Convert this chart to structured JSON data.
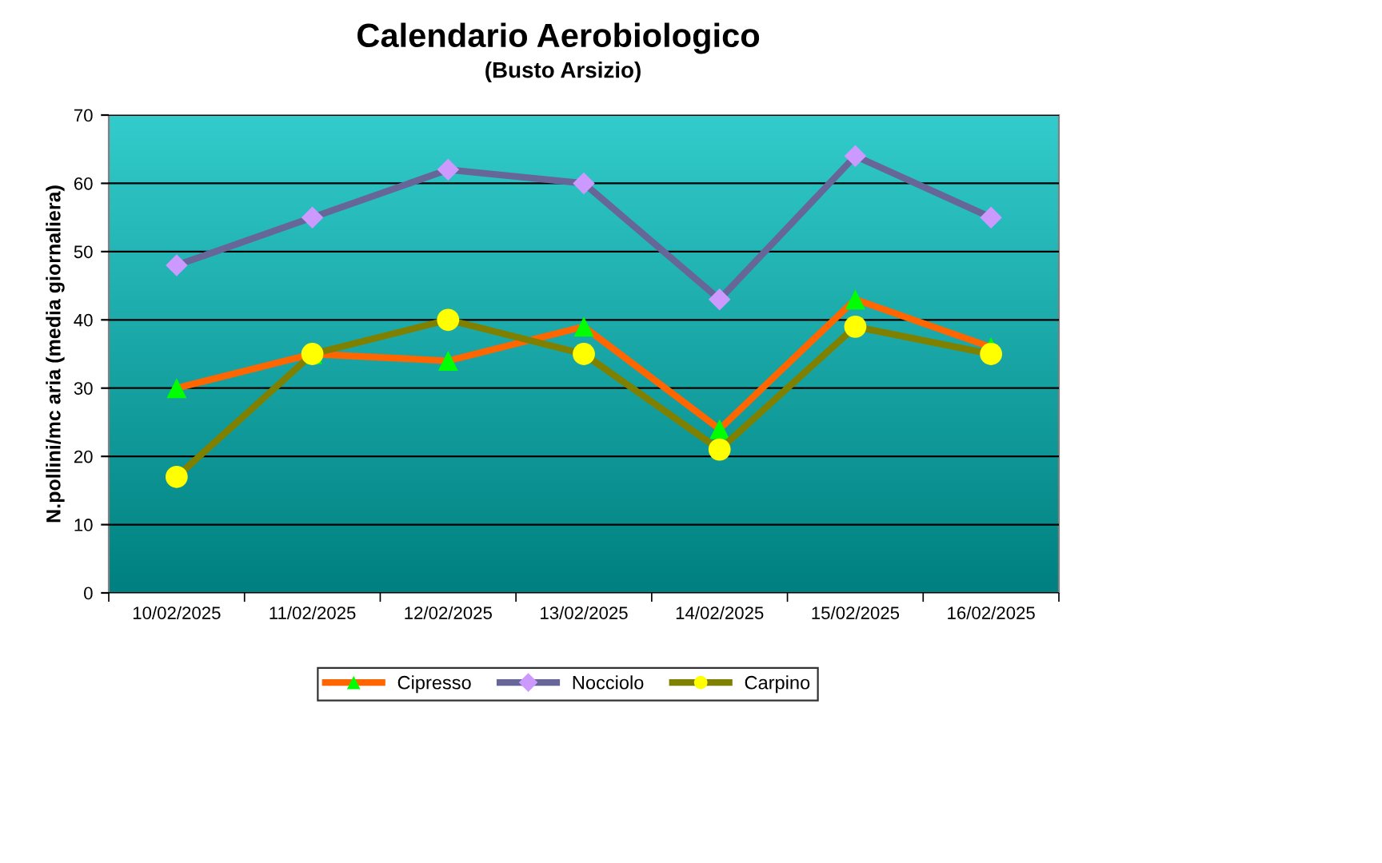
{
  "chart_data": {
    "type": "line",
    "title": "Calendario Aerobiologico",
    "subtitle": "(Busto Arsizio)",
    "ylabel": "N.pollini/mc aria (media giornaliera)",
    "categories": [
      "10/02/2025",
      "11/02/2025",
      "12/02/2025",
      "13/02/2025",
      "14/02/2025",
      "15/02/2025",
      "16/02/2025"
    ],
    "series": [
      {
        "name": "Cipresso",
        "color": "#ff6600",
        "marker": "triangle",
        "colors": [
          "#00ff00",
          "#00ff00",
          "#00ff00",
          "#00ff00",
          "#00ff00",
          "#00ff00",
          "#00ff00"
        ],
        "values": [
          30,
          35,
          34,
          39,
          24,
          43,
          36
        ]
      },
      {
        "name": "Nocciolo",
        "color": "#666699",
        "marker": "diamond",
        "colors": [
          "#cc99ff",
          "#cc99ff",
          "#cc99ff",
          "#cc99ff",
          "#cc99ff",
          "#cc99ff",
          "#cc99ff"
        ],
        "values": [
          48,
          55,
          62,
          60,
          43,
          64,
          55
        ]
      },
      {
        "name": "Carpino",
        "color": "#808000",
        "marker": "circle",
        "colors": [
          "#ffff00",
          "#ffff00",
          "#ffff00",
          "#ffff00",
          "#ffff00",
          "#ffff00",
          "#ffff00"
        ],
        "values": [
          17,
          35,
          40,
          35,
          21,
          39,
          35
        ]
      }
    ],
    "ylim": [
      0,
      70
    ],
    "yticks": [
      0,
      10,
      20,
      30,
      40,
      50,
      60,
      70
    ],
    "grid": "y",
    "legend": "bottom"
  }
}
